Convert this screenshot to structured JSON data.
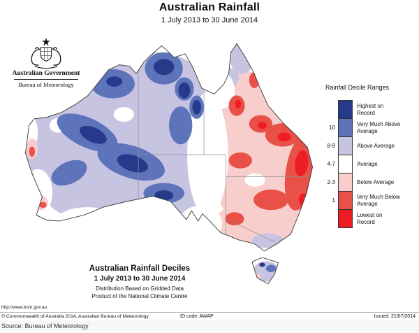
{
  "page": {
    "title": "Australian Rainfall",
    "subtitle": "1 July 2013 to 30 June 2014"
  },
  "logo": {
    "government": "Australian Government",
    "department": "Bureau of Meteorology",
    "crest": "australian-coat-of-arms"
  },
  "legend": {
    "title": "Rainfall Decile Ranges",
    "items": [
      {
        "key": "highest",
        "range": "",
        "label": "Highest on Record",
        "color": "#26398b"
      },
      {
        "key": "d10",
        "range": "10",
        "label": "Very Much Above Average",
        "color": "#5d73ba"
      },
      {
        "key": "d89",
        "range": "8-9",
        "label": "Above Average",
        "color": "#c7c4e2"
      },
      {
        "key": "d47",
        "range": "4-7",
        "label": "Average",
        "color": "#ffffff"
      },
      {
        "key": "d23",
        "range": "2-3",
        "label": "Below Average",
        "color": "#f7cecc"
      },
      {
        "key": "d1",
        "range": "1",
        "label": "Very Much Below Average",
        "color": "#e85048"
      },
      {
        "key": "lowest",
        "range": "",
        "label": "Lowest on Record",
        "color": "#ee1d23"
      }
    ]
  },
  "map_caption": {
    "line1": "Australian Rainfall Deciles",
    "line2": "1 July 2013 to 30 June 2014",
    "line3": "Distribution Based on Gridded Data",
    "line4": "Product of the National Climate Centre"
  },
  "footer": {
    "url": "http://www.bom.gov.au",
    "copyright": "© Commonwealth of Australia 2014, Australian Bureau of Meteorology",
    "id_code": "ID code: AWAP",
    "issued": "Issued: 21/07/2014"
  },
  "caption": {
    "source": "Source: Bureau of Meteorology"
  }
}
